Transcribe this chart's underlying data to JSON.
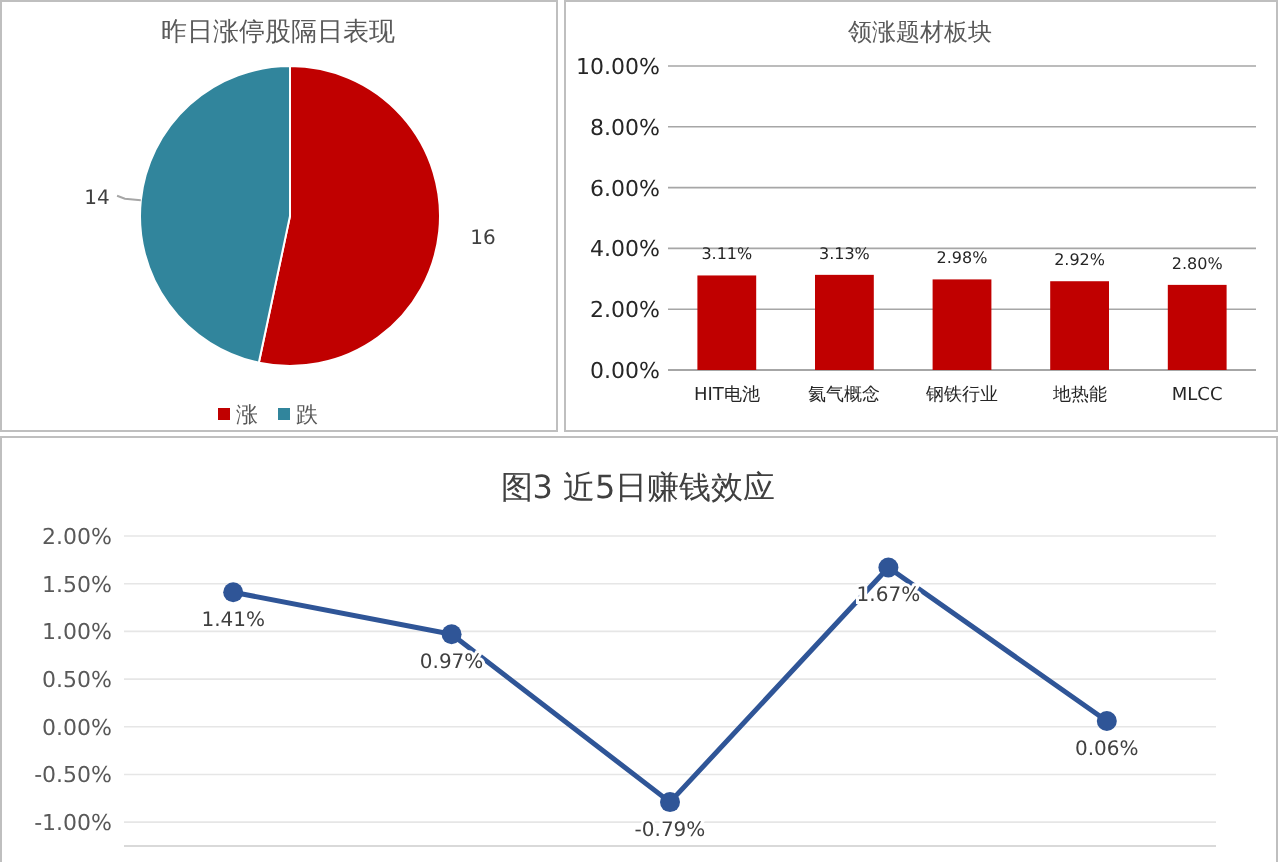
{
  "chart_data": [
    {
      "type": "pie",
      "title": "昨日涨停股隔日表现",
      "categories": [
        "涨",
        "跌"
      ],
      "values": [
        16,
        14
      ],
      "colors": [
        "#c00000",
        "#31859c"
      ],
      "data_labels": true,
      "legend": "bottom"
    },
    {
      "type": "bar",
      "title": "领涨题材板块",
      "categories": [
        "HIT电池",
        "氦气概念",
        "钢铁行业",
        "地热能",
        "MLCC"
      ],
      "values": [
        3.11,
        3.13,
        2.98,
        2.92,
        2.8
      ],
      "color": "#c00000",
      "value_labels": [
        "3.11%",
        "3.13%",
        "2.98%",
        "2.92%",
        "2.80%"
      ],
      "ylim": [
        0,
        10
      ],
      "yticks": [
        {
          "value": 0,
          "label": "0.00%"
        },
        {
          "value": 2,
          "label": "2.00%"
        },
        {
          "value": 4,
          "label": "4.00%"
        },
        {
          "value": 6,
          "label": "6.00%"
        },
        {
          "value": 8,
          "label": "8.00%"
        },
        {
          "value": 10,
          "label": "10.00%"
        }
      ],
      "grid": "y"
    },
    {
      "type": "line",
      "title": "图3 近5日赚钱效应",
      "categories": [
        null,
        null,
        null,
        null,
        null
      ],
      "series": [
        {
          "color": "#2f5597",
          "values": [
            1.41,
            0.97,
            -0.79,
            1.67,
            0.06
          ]
        }
      ],
      "value_labels": [
        "1.41%",
        "0.97%",
        "-0.79%",
        "1.67%",
        "0.06%"
      ],
      "ylim": [
        -1.25,
        2
      ],
      "yticks": [
        {
          "value": -1,
          "label": "-1.00%"
        },
        {
          "value": -0.5,
          "label": "-0.50%"
        },
        {
          "value": 0,
          "label": "0.00%"
        },
        {
          "value": 0.5,
          "label": "0.50%"
        },
        {
          "value": 1,
          "label": "1.00%"
        },
        {
          "value": 1.5,
          "label": "1.50%"
        },
        {
          "value": 2,
          "label": "2.00%"
        }
      ],
      "grid": "y",
      "marker": "circle",
      "line_style": "solid"
    }
  ]
}
